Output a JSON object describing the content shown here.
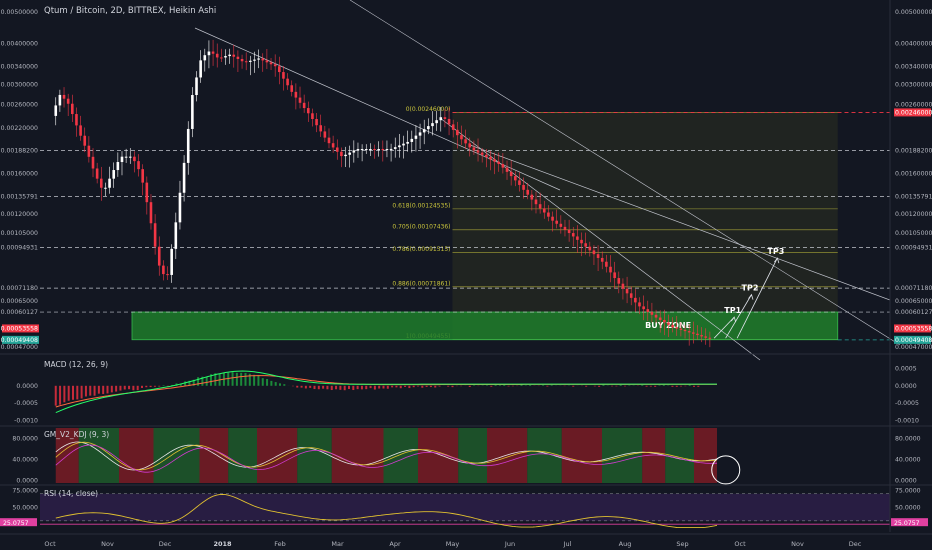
{
  "header": {
    "title": "Qtum / Bitcoin, 2D, BITTREX, Heikin Ashi"
  },
  "chart_data": [
    {
      "type": "line",
      "panel": "price",
      "scale": "log",
      "ylim": [
        0.00046,
        0.00525
      ],
      "y_ticks": [
        "0.00500000",
        "0.00400000",
        "0.00340000",
        "0.00300000",
        "0.00260000",
        "0.00220000",
        "0.00188200",
        "0.00160000",
        "0.00135791",
        "0.00120000",
        "0.00105000",
        "0.00094931",
        "0.00071180",
        "0.00065000",
        "0.00060127",
        "0.00053558",
        "0.00049408",
        "0.00047000"
      ],
      "right_ticks": [
        "0.00500000",
        "0.00400000",
        "0.00340000",
        "0.00300000",
        "0.00260000",
        "0.00246000",
        "0.00188200",
        "0.00160000",
        "0.00135791",
        "0.00120000",
        "0.00105000",
        "0.00094931",
        "0.00071180",
        "0.00065000",
        "0.00060127",
        "0.00053558",
        "0.00049408",
        "0.00047000"
      ],
      "highlight_left": [
        {
          "value": "0.00246000",
          "color": "#f23645"
        },
        {
          "value": "0.00053558",
          "color": "#f23645"
        },
        {
          "value": "0.00049408",
          "color": "#26a69a"
        }
      ],
      "highlight_right": [
        {
          "value": "0.00246000",
          "color": "#f23645"
        },
        {
          "value": "0.00053558",
          "color": "#f23645"
        },
        {
          "value": "0.00049408",
          "color": "#26a69a"
        }
      ],
      "x_labels": [
        "Oct",
        "Nov",
        "Dec",
        "2018",
        "Feb",
        "Mar",
        "Apr",
        "May",
        "Jun",
        "Jul",
        "Aug",
        "Sep",
        "Oct",
        "Nov",
        "Dec"
      ],
      "x_months": [
        0,
        1,
        2,
        3,
        4,
        5,
        6,
        7,
        8,
        9,
        10,
        11,
        12,
        13,
        14
      ],
      "x_month_origin": "2017-10",
      "series": [
        {
          "values": [
            [
              0.1,
              0.0024
            ],
            [
              0.25,
              0.0028
            ],
            [
              0.4,
              0.0026
            ],
            [
              0.55,
              0.0022
            ],
            [
              0.7,
              0.0019
            ],
            [
              0.85,
              0.0016
            ],
            [
              1.0,
              0.0014
            ],
            [
              1.15,
              0.0016
            ],
            [
              1.3,
              0.0018
            ],
            [
              1.5,
              0.0018
            ],
            [
              1.65,
              0.0016
            ],
            [
              1.8,
              0.0012
            ],
            [
              1.95,
              0.00085
            ],
            [
              2.1,
              0.00075
            ],
            [
              2.25,
              0.0011
            ],
            [
              2.4,
              0.0017
            ],
            [
              2.55,
              0.0028
            ],
            [
              2.7,
              0.0036
            ],
            [
              2.85,
              0.0038
            ],
            [
              3.0,
              0.0036
            ],
            [
              3.2,
              0.0037
            ],
            [
              3.45,
              0.0035
            ],
            [
              3.7,
              0.0036
            ],
            [
              4.0,
              0.0034
            ],
            [
              4.3,
              0.0028
            ],
            [
              4.6,
              0.0024
            ],
            [
              4.9,
              0.002
            ],
            [
              5.15,
              0.0018
            ],
            [
              5.4,
              0.0019
            ],
            [
              5.7,
              0.0019
            ],
            [
              6.0,
              0.0019
            ],
            [
              6.3,
              0.002
            ],
            [
              6.6,
              0.0022
            ],
            [
              6.9,
              0.0024
            ],
            [
              7.15,
              0.0021
            ],
            [
              7.4,
              0.0019
            ],
            [
              7.65,
              0.0018
            ],
            [
              7.9,
              0.0017
            ],
            [
              8.2,
              0.0015
            ],
            [
              8.5,
              0.0013
            ],
            [
              8.8,
              0.00115
            ],
            [
              9.1,
              0.00105
            ],
            [
              9.4,
              0.00095
            ],
            [
              9.7,
              0.00085
            ],
            [
              10.0,
              0.00072
            ],
            [
              10.3,
              0.00063
            ],
            [
              10.6,
              0.00058
            ],
            [
              10.9,
              0.00054
            ],
            [
              11.2,
              0.00052
            ],
            [
              11.5,
              0.0005
            ]
          ]
        }
      ],
      "fib_levels": [
        {
          "label": "0(0.00246000)",
          "value": 0.00246
        },
        {
          "label": "0.618(0.00124535)",
          "value": 0.00124535
        },
        {
          "label": "0.705(0.00107436)",
          "value": 0.00107436
        },
        {
          "label": "0.786(0.00091515)",
          "value": 0.00091515
        },
        {
          "label": "0.886(0.00071861)",
          "value": 0.00071861
        },
        {
          "label": "1(0.00049455)",
          "value": 0.00049455
        }
      ],
      "zone_value_range": [
        0.00049455,
        0.00060127
      ],
      "annotations": [
        "BUY ZONE",
        "TP1",
        "TP2",
        "TP3"
      ]
    },
    {
      "type": "bar",
      "panel": "macd",
      "title": "MACD (12, 26, 9)",
      "y_ticks": [
        "0.0000",
        "-0.0005",
        "-0.0010"
      ],
      "right_ticks": [
        "0.0005",
        "0.0000",
        "-0.0005",
        "-0.0010"
      ],
      "ylim": [
        -0.0011,
        0.0008
      ]
    },
    {
      "type": "line",
      "panel": "kdj",
      "title": "GM_V2_KDJ (9, 3)",
      "y_ticks": [
        "80.0000",
        "40.0000",
        "0.0000"
      ],
      "right_ticks": [
        "80.0000",
        "40.0000",
        "0.0000"
      ],
      "ylim": [
        -5,
        100
      ]
    },
    {
      "type": "line",
      "panel": "rsi",
      "title": "RSI (14, close)",
      "y_ticks": [
        "75.0000",
        "50.0000"
      ],
      "right_ticks": [
        "75.0000",
        "50.0000"
      ],
      "current_value": "25.0757",
      "ylim": [
        15,
        80
      ],
      "levels": [
        70,
        30
      ]
    }
  ],
  "colors": {
    "background": "#131722",
    "up": "#ffffff",
    "down": "#f23645",
    "zone_fill": "#1e7d2b",
    "fib": "#c9c43c",
    "macd_line": "#26ff6a",
    "signal_line": "#ff6a3d",
    "hist_pos": "#1b8a3a",
    "hist_neg": "#c62b3a",
    "kdj_up_bg": "#1e5a2a",
    "kdj_down_bg": "#7a1c24",
    "rsi_band": "#2b1e46",
    "rsi_line": "#e0c030"
  }
}
